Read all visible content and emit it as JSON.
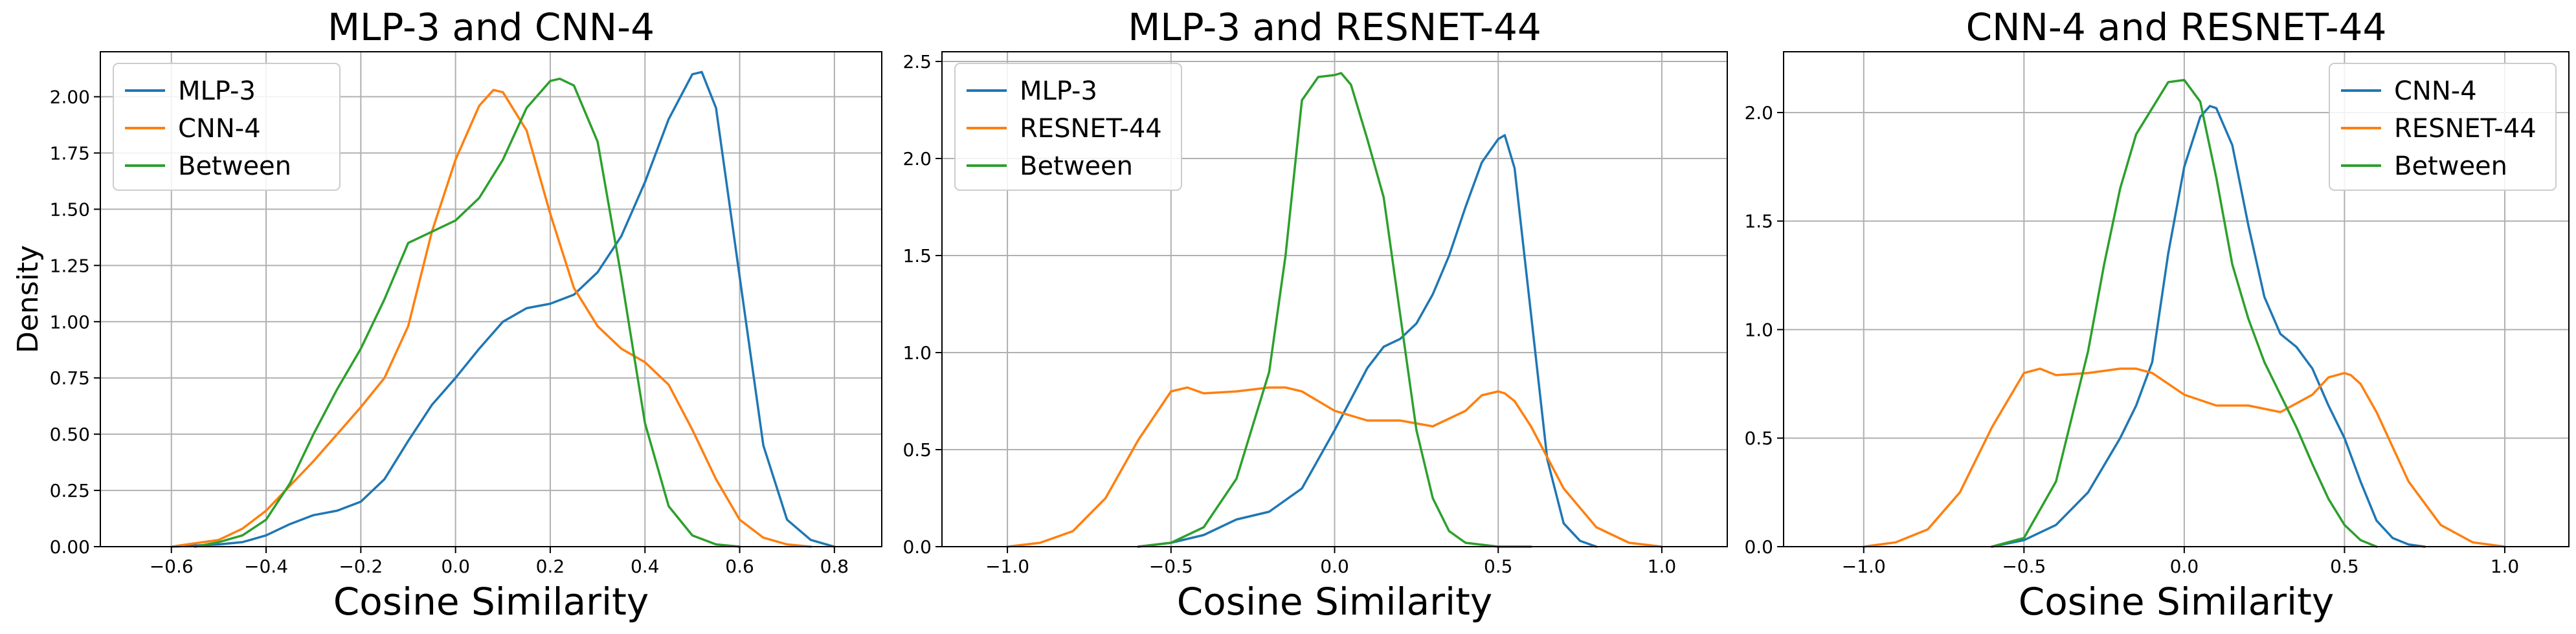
{
  "chart_data": [
    {
      "type": "line",
      "title": "MLP-3 and CNN-4",
      "xlabel": "Cosine Similarity",
      "ylabel": "Density",
      "xlim": [
        -0.75,
        0.9
      ],
      "ylim": [
        0,
        2.2
      ],
      "xticks": [
        -0.6,
        -0.4,
        -0.2,
        0.0,
        0.2,
        0.4,
        0.6,
        0.8
      ],
      "yticks": [
        0.0,
        0.25,
        0.5,
        0.75,
        1.0,
        1.25,
        1.5,
        1.75,
        2.0
      ],
      "xtick_labels": [
        "−0.6",
        "−0.4",
        "−0.2",
        "0.0",
        "0.2",
        "0.4",
        "0.6",
        "0.8"
      ],
      "ytick_labels": [
        "0.00",
        "0.25",
        "0.50",
        "0.75",
        "1.00",
        "1.25",
        "1.50",
        "1.75",
        "2.00"
      ],
      "grid": true,
      "legend_position": "top-left",
      "series": [
        {
          "name": "MLP-3",
          "color": "#1f77b4",
          "x": [
            -0.6,
            -0.5,
            -0.45,
            -0.4,
            -0.35,
            -0.3,
            -0.25,
            -0.2,
            -0.15,
            -0.1,
            -0.05,
            0.0,
            0.05,
            0.1,
            0.15,
            0.2,
            0.25,
            0.3,
            0.35,
            0.4,
            0.45,
            0.5,
            0.52,
            0.55,
            0.6,
            0.65,
            0.7,
            0.75,
            0.8
          ],
          "y": [
            0.0,
            0.01,
            0.02,
            0.05,
            0.1,
            0.14,
            0.16,
            0.2,
            0.3,
            0.47,
            0.63,
            0.75,
            0.88,
            1.0,
            1.06,
            1.08,
            1.12,
            1.22,
            1.38,
            1.62,
            1.9,
            2.1,
            2.11,
            1.95,
            1.2,
            0.45,
            0.12,
            0.03,
            0.0
          ]
        },
        {
          "name": "CNN-4",
          "color": "#ff7f0e",
          "x": [
            -0.6,
            -0.5,
            -0.45,
            -0.4,
            -0.35,
            -0.3,
            -0.25,
            -0.2,
            -0.15,
            -0.1,
            -0.05,
            0.0,
            0.05,
            0.08,
            0.1,
            0.15,
            0.2,
            0.25,
            0.3,
            0.35,
            0.4,
            0.45,
            0.5,
            0.55,
            0.6,
            0.65,
            0.7,
            0.75
          ],
          "y": [
            0.0,
            0.03,
            0.08,
            0.16,
            0.27,
            0.38,
            0.5,
            0.62,
            0.75,
            0.98,
            1.4,
            1.72,
            1.96,
            2.03,
            2.02,
            1.85,
            1.48,
            1.15,
            0.98,
            0.88,
            0.82,
            0.72,
            0.52,
            0.3,
            0.12,
            0.04,
            0.01,
            0.0
          ]
        },
        {
          "name": "Between",
          "color": "#2ca02c",
          "x": [
            -0.55,
            -0.5,
            -0.45,
            -0.4,
            -0.35,
            -0.3,
            -0.25,
            -0.2,
            -0.15,
            -0.1,
            -0.05,
            0.0,
            0.05,
            0.1,
            0.15,
            0.2,
            0.22,
            0.25,
            0.3,
            0.35,
            0.4,
            0.45,
            0.5,
            0.55,
            0.6
          ],
          "y": [
            0.0,
            0.02,
            0.05,
            0.12,
            0.28,
            0.5,
            0.7,
            0.88,
            1.1,
            1.35,
            1.4,
            1.45,
            1.55,
            1.72,
            1.95,
            2.07,
            2.08,
            2.05,
            1.8,
            1.2,
            0.55,
            0.18,
            0.05,
            0.01,
            0.0
          ]
        }
      ]
    },
    {
      "type": "line",
      "title": "MLP-3 and RESNET-44",
      "xlabel": "Cosine Similarity",
      "ylabel": "",
      "xlim": [
        -1.2,
        1.2
      ],
      "ylim": [
        0,
        2.55
      ],
      "xticks": [
        -1.0,
        -0.5,
        0.0,
        0.5,
        1.0
      ],
      "yticks": [
        0.0,
        0.5,
        1.0,
        1.5,
        2.0,
        2.5
      ],
      "xtick_labels": [
        "−1.0",
        "−0.5",
        "0.0",
        "0.5",
        "1.0"
      ],
      "ytick_labels": [
        "0.0",
        "0.5",
        "1.0",
        "1.5",
        "2.0",
        "2.5"
      ],
      "grid": true,
      "legend_position": "top-left",
      "series": [
        {
          "name": "MLP-3",
          "color": "#1f77b4",
          "x": [
            -0.6,
            -0.5,
            -0.4,
            -0.3,
            -0.2,
            -0.1,
            0.0,
            0.05,
            0.1,
            0.15,
            0.2,
            0.25,
            0.3,
            0.35,
            0.4,
            0.45,
            0.5,
            0.52,
            0.55,
            0.6,
            0.65,
            0.7,
            0.75,
            0.8
          ],
          "y": [
            0.0,
            0.02,
            0.06,
            0.14,
            0.18,
            0.3,
            0.6,
            0.76,
            0.92,
            1.03,
            1.07,
            1.15,
            1.3,
            1.5,
            1.75,
            1.98,
            2.1,
            2.12,
            1.95,
            1.2,
            0.45,
            0.12,
            0.03,
            0.0
          ]
        },
        {
          "name": "RESNET-44",
          "color": "#ff7f0e",
          "x": [
            -1.0,
            -0.9,
            -0.8,
            -0.7,
            -0.6,
            -0.5,
            -0.45,
            -0.4,
            -0.3,
            -0.2,
            -0.15,
            -0.1,
            0.0,
            0.1,
            0.2,
            0.3,
            0.4,
            0.45,
            0.5,
            0.52,
            0.55,
            0.6,
            0.7,
            0.8,
            0.9,
            1.0
          ],
          "y": [
            0.0,
            0.02,
            0.08,
            0.25,
            0.55,
            0.8,
            0.82,
            0.79,
            0.8,
            0.82,
            0.82,
            0.8,
            0.7,
            0.65,
            0.65,
            0.62,
            0.7,
            0.78,
            0.8,
            0.79,
            0.75,
            0.62,
            0.3,
            0.1,
            0.02,
            0.0
          ]
        },
        {
          "name": "Between",
          "color": "#2ca02c",
          "x": [
            -0.6,
            -0.5,
            -0.4,
            -0.3,
            -0.2,
            -0.15,
            -0.1,
            -0.05,
            0.0,
            0.02,
            0.05,
            0.1,
            0.15,
            0.2,
            0.25,
            0.3,
            0.35,
            0.4,
            0.5,
            0.6
          ],
          "y": [
            0.0,
            0.02,
            0.1,
            0.35,
            0.9,
            1.5,
            2.3,
            2.42,
            2.43,
            2.44,
            2.38,
            2.1,
            1.8,
            1.2,
            0.6,
            0.25,
            0.08,
            0.02,
            0.0,
            0.0
          ]
        }
      ]
    },
    {
      "type": "line",
      "title": "CNN-4 and RESNET-44",
      "xlabel": "Cosine Similarity",
      "ylabel": "",
      "xlim": [
        -1.25,
        1.2
      ],
      "ylim": [
        0,
        2.28
      ],
      "xticks": [
        -1.0,
        -0.5,
        0.0,
        0.5,
        1.0
      ],
      "yticks": [
        0.0,
        0.5,
        1.0,
        1.5,
        2.0
      ],
      "xtick_labels": [
        "−1.0",
        "−0.5",
        "0.0",
        "0.5",
        "1.0"
      ],
      "ytick_labels": [
        "0.0",
        "0.5",
        "1.0",
        "1.5",
        "2.0"
      ],
      "grid": true,
      "legend_position": "top-right",
      "series": [
        {
          "name": "CNN-4",
          "color": "#1f77b4",
          "x": [
            -0.6,
            -0.5,
            -0.4,
            -0.3,
            -0.2,
            -0.15,
            -0.1,
            -0.05,
            0.0,
            0.05,
            0.08,
            0.1,
            0.15,
            0.2,
            0.25,
            0.3,
            0.35,
            0.4,
            0.45,
            0.5,
            0.55,
            0.6,
            0.65,
            0.7,
            0.75
          ],
          "y": [
            0.0,
            0.03,
            0.1,
            0.25,
            0.5,
            0.65,
            0.85,
            1.35,
            1.75,
            1.98,
            2.03,
            2.02,
            1.85,
            1.48,
            1.15,
            0.98,
            0.92,
            0.82,
            0.65,
            0.5,
            0.3,
            0.12,
            0.04,
            0.01,
            0.0
          ]
        },
        {
          "name": "RESNET-44",
          "color": "#ff7f0e",
          "x": [
            -1.0,
            -0.9,
            -0.8,
            -0.7,
            -0.6,
            -0.5,
            -0.45,
            -0.4,
            -0.3,
            -0.2,
            -0.15,
            -0.1,
            0.0,
            0.1,
            0.2,
            0.3,
            0.4,
            0.45,
            0.5,
            0.52,
            0.55,
            0.6,
            0.7,
            0.8,
            0.9,
            1.0
          ],
          "y": [
            0.0,
            0.02,
            0.08,
            0.25,
            0.55,
            0.8,
            0.82,
            0.79,
            0.8,
            0.82,
            0.82,
            0.8,
            0.7,
            0.65,
            0.65,
            0.62,
            0.7,
            0.78,
            0.8,
            0.79,
            0.75,
            0.62,
            0.3,
            0.1,
            0.02,
            0.0
          ]
        },
        {
          "name": "Between",
          "color": "#2ca02c",
          "x": [
            -0.6,
            -0.5,
            -0.4,
            -0.3,
            -0.25,
            -0.2,
            -0.15,
            -0.1,
            -0.05,
            0.0,
            0.05,
            0.1,
            0.15,
            0.2,
            0.25,
            0.3,
            0.35,
            0.4,
            0.45,
            0.5,
            0.55,
            0.6
          ],
          "y": [
            0.0,
            0.04,
            0.3,
            0.9,
            1.3,
            1.65,
            1.9,
            2.02,
            2.14,
            2.15,
            2.05,
            1.7,
            1.3,
            1.05,
            0.85,
            0.7,
            0.55,
            0.38,
            0.22,
            0.1,
            0.03,
            0.0
          ]
        }
      ]
    }
  ]
}
